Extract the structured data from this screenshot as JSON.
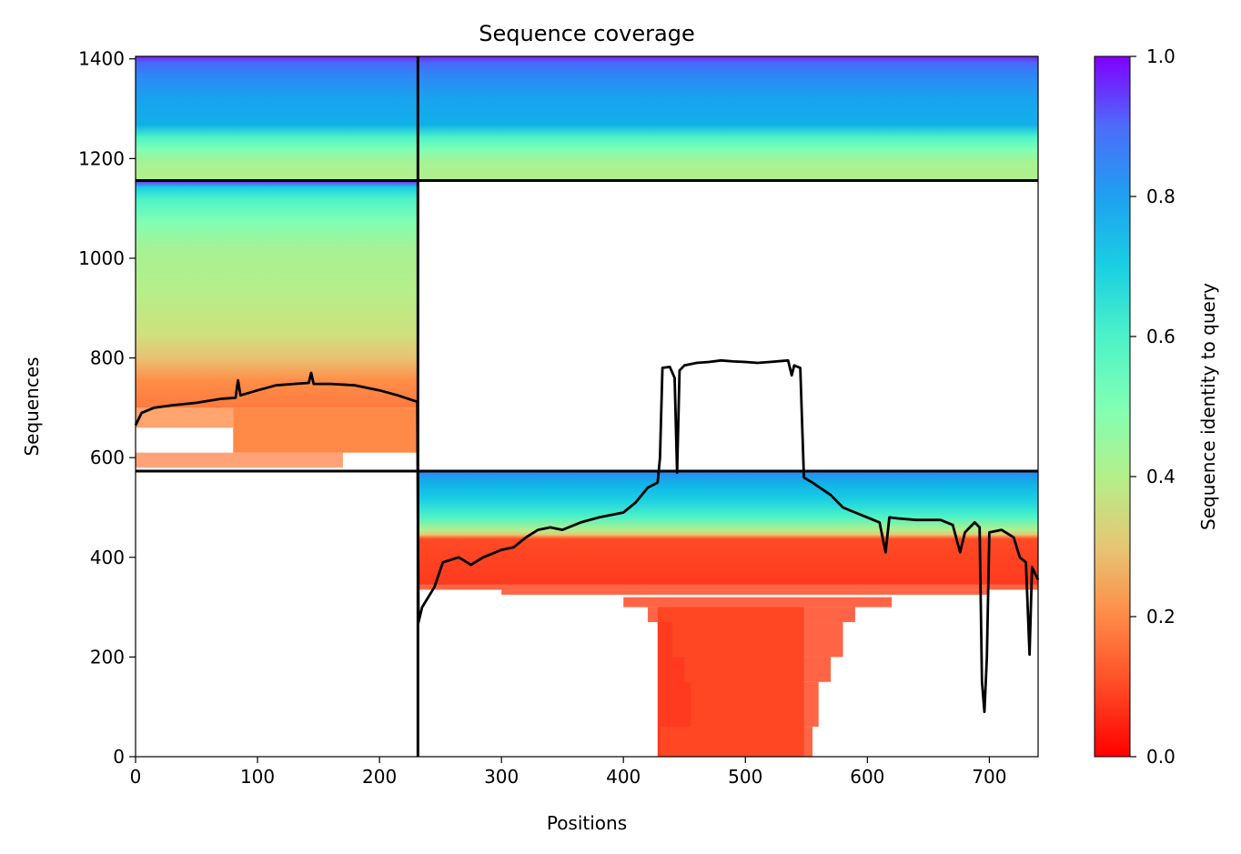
{
  "chart_data": {
    "type": "heatmap",
    "title": "Sequence coverage",
    "xlabel": "Positions",
    "ylabel": "Sequences",
    "xlim": [
      0,
      740
    ],
    "ylim": [
      0,
      1405
    ],
    "xticks": [
      0,
      100,
      200,
      300,
      400,
      500,
      600,
      700
    ],
    "yticks": [
      0,
      200,
      400,
      600,
      800,
      1000,
      1200,
      1400
    ],
    "colorbar": {
      "label": "Sequence identity to query",
      "range": [
        0,
        1
      ],
      "ticks": [
        0.0,
        0.2,
        0.4,
        0.6,
        0.8,
        1.0
      ],
      "colormap": "rainbow_r"
    },
    "separators": {
      "x": [
        231.5
      ],
      "y": [
        573,
        1156
      ]
    },
    "blocks": [
      {
        "x": [
          0,
          231.5
        ],
        "y": [
          1156,
          1405
        ],
        "identity": [
          0.4,
          0.95
        ]
      },
      {
        "x": [
          231.5,
          740
        ],
        "y": [
          1156,
          1405
        ],
        "identity": [
          0.4,
          0.95
        ]
      },
      {
        "x": [
          0,
          231.5
        ],
        "y": [
          573,
          1156
        ],
        "identity": [
          0.15,
          0.95
        ]
      },
      {
        "x": [
          231.5,
          740
        ],
        "y": [
          0,
          573
        ],
        "identity": [
          0.05,
          0.95
        ]
      }
    ],
    "coverage_line": [
      [
        0,
        665
      ],
      [
        5,
        690
      ],
      [
        15,
        700
      ],
      [
        30,
        705
      ],
      [
        50,
        710
      ],
      [
        70,
        718
      ],
      [
        82,
        720
      ],
      [
        84,
        755
      ],
      [
        86,
        725
      ],
      [
        100,
        735
      ],
      [
        115,
        745
      ],
      [
        130,
        748
      ],
      [
        142,
        750
      ],
      [
        144,
        770
      ],
      [
        146,
        748
      ],
      [
        160,
        748
      ],
      [
        180,
        745
      ],
      [
        200,
        735
      ],
      [
        215,
        725
      ],
      [
        231,
        712
      ],
      [
        232,
        270
      ],
      [
        235,
        300
      ],
      [
        245,
        340
      ],
      [
        252,
        390
      ],
      [
        265,
        400
      ],
      [
        275,
        385
      ],
      [
        285,
        400
      ],
      [
        300,
        415
      ],
      [
        310,
        420
      ],
      [
        320,
        440
      ],
      [
        330,
        455
      ],
      [
        340,
        460
      ],
      [
        350,
        455
      ],
      [
        365,
        470
      ],
      [
        380,
        480
      ],
      [
        400,
        490
      ],
      [
        410,
        510
      ],
      [
        420,
        540
      ],
      [
        428,
        550
      ],
      [
        430,
        600
      ],
      [
        432,
        780
      ],
      [
        438,
        782
      ],
      [
        442,
        760
      ],
      [
        444,
        570
      ],
      [
        446,
        775
      ],
      [
        450,
        785
      ],
      [
        460,
        790
      ],
      [
        470,
        792
      ],
      [
        480,
        795
      ],
      [
        490,
        793
      ],
      [
        500,
        792
      ],
      [
        510,
        790
      ],
      [
        520,
        792
      ],
      [
        535,
        795
      ],
      [
        538,
        765
      ],
      [
        540,
        785
      ],
      [
        545,
        780
      ],
      [
        548,
        560
      ],
      [
        555,
        550
      ],
      [
        570,
        525
      ],
      [
        580,
        500
      ],
      [
        590,
        490
      ],
      [
        600,
        480
      ],
      [
        610,
        470
      ],
      [
        615,
        410
      ],
      [
        618,
        480
      ],
      [
        625,
        478
      ],
      [
        640,
        475
      ],
      [
        660,
        475
      ],
      [
        670,
        465
      ],
      [
        676,
        410
      ],
      [
        680,
        450
      ],
      [
        688,
        470
      ],
      [
        692,
        460
      ],
      [
        694,
        150
      ],
      [
        696,
        90
      ],
      [
        698,
        200
      ],
      [
        700,
        450
      ],
      [
        710,
        455
      ],
      [
        720,
        440
      ],
      [
        725,
        400
      ],
      [
        730,
        390
      ],
      [
        733,
        205
      ],
      [
        735,
        380
      ],
      [
        740,
        355
      ]
    ]
  }
}
